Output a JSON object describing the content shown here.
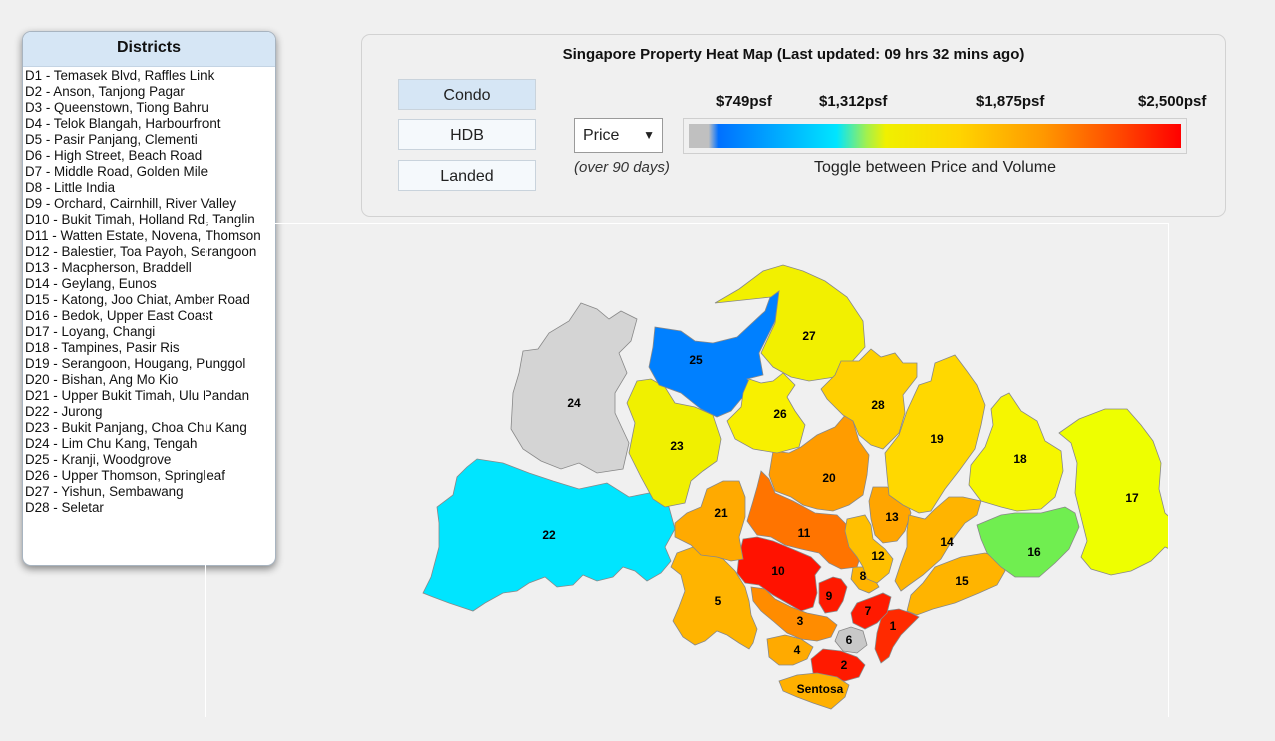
{
  "sidebar": {
    "title": "Districts",
    "items": [
      "D1 - Temasek Blvd, Raffles Link",
      "D2 - Anson, Tanjong Pagar",
      "D3 - Queenstown, Tiong Bahru",
      "D4 - Telok Blangah, Harbourfront",
      "D5 - Pasir Panjang, Clementi",
      "D6 - High Street, Beach Road",
      "D7 - Middle Road, Golden Mile",
      "D8 - Little India",
      "D9 - Orchard, Cairnhill, River Valley",
      "D10 - Bukit Timah, Holland Rd, Tanglin",
      "D11 - Watten Estate, Novena, Thomson",
      "D12 - Balestier, Toa Payoh, Serangoon",
      "D13 - Macpherson, Braddell",
      "D14 - Geylang, Eunos",
      "D15 - Katong, Joo Chiat, Amber Road",
      "D16 - Bedok, Upper East Coast",
      "D17 - Loyang, Changi",
      "D18 - Tampines, Pasir Ris",
      "D19 - Serangoon, Hougang, Punggol",
      "D20 - Bishan, Ang Mo Kio",
      "D21 - Upper Bukit Timah, Ulu Pandan",
      "D22 - Jurong",
      "D23 - Bukit Panjang, Choa Chu Kang",
      "D24 - Lim Chu Kang, Tengah",
      "D25 - Kranji, Woodgrove",
      "D26 - Upper Thomson, Springleaf",
      "D27 - Yishun, Sembawang",
      "D28 - Seletar"
    ]
  },
  "header": {
    "title": "Singapore Property Heat Map (Last updated: 09 hrs 32 mins ago)"
  },
  "property_types": [
    {
      "label": "Condo",
      "active": true
    },
    {
      "label": "HDB",
      "active": false
    },
    {
      "label": "Landed",
      "active": false
    }
  ],
  "metric": {
    "selected": "Price",
    "period_note": "(over 90 days)"
  },
  "legend": {
    "labels": [
      "$749psf",
      "$1,312psf",
      "$1,875psf",
      "$2,500psf"
    ],
    "caption": "Toggle between Price and Volume"
  },
  "map": {
    "districts": [
      {
        "id": "1",
        "color": "#ff2a00"
      },
      {
        "id": "2",
        "color": "#ff1a00"
      },
      {
        "id": "3",
        "color": "#ff8c00"
      },
      {
        "id": "4",
        "color": "#ffaa00"
      },
      {
        "id": "5",
        "color": "#ffb400"
      },
      {
        "id": "6",
        "color": "#c8c8c8"
      },
      {
        "id": "7",
        "color": "#ff1a00"
      },
      {
        "id": "8",
        "color": "#ffb400"
      },
      {
        "id": "9",
        "color": "#ff1a00"
      },
      {
        "id": "10",
        "color": "#ff1200"
      },
      {
        "id": "11",
        "color": "#ff7400"
      },
      {
        "id": "12",
        "color": "#ffc000"
      },
      {
        "id": "13",
        "color": "#ffa500"
      },
      {
        "id": "14",
        "color": "#ffb400"
      },
      {
        "id": "15",
        "color": "#ffb400"
      },
      {
        "id": "16",
        "color": "#70ee50"
      },
      {
        "id": "17",
        "color": "#eeff00"
      },
      {
        "id": "18",
        "color": "#f6f600"
      },
      {
        "id": "19",
        "color": "#ffd800"
      },
      {
        "id": "20",
        "color": "#ff9c00"
      },
      {
        "id": "21",
        "color": "#ffaa00"
      },
      {
        "id": "22",
        "color": "#00e5ff"
      },
      {
        "id": "23",
        "color": "#f0f000"
      },
      {
        "id": "24",
        "color": "#d4d4d4"
      },
      {
        "id": "25",
        "color": "#0080ff"
      },
      {
        "id": "26",
        "color": "#f8f000"
      },
      {
        "id": "27",
        "color": "#f2f000"
      },
      {
        "id": "28",
        "color": "#ffd000"
      }
    ],
    "sentosa": {
      "label": "Sentosa",
      "color": "#ffb000"
    }
  }
}
